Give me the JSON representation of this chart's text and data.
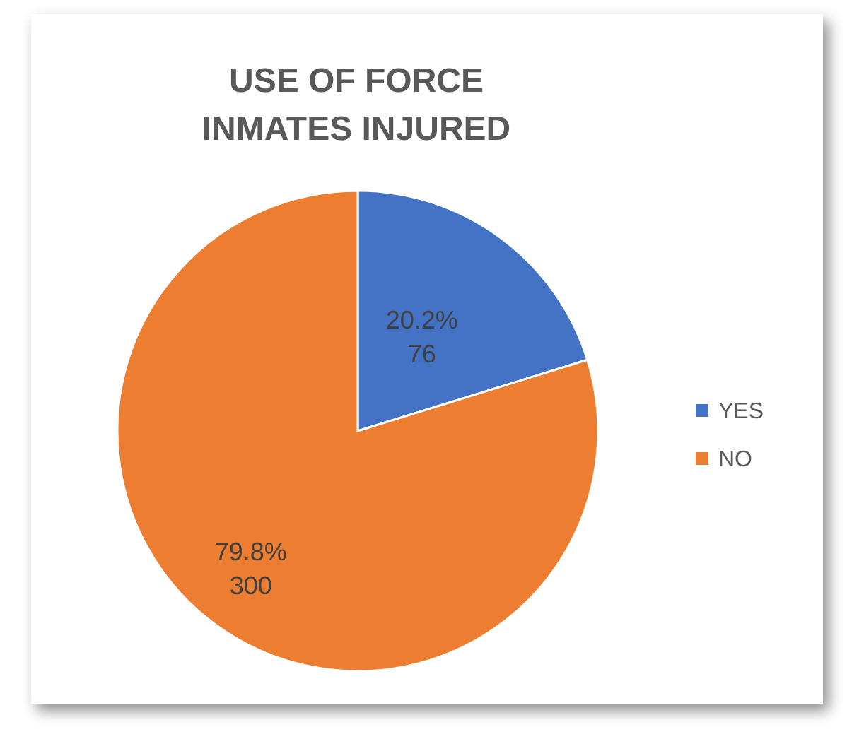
{
  "chart_data": {
    "type": "pie",
    "title": "USE OF FORCE\nINMATES INJURED",
    "categories": [
      "YES",
      "NO"
    ],
    "values": [
      76,
      300
    ],
    "colors": [
      "#4472c4",
      "#ed7d31"
    ],
    "value_labels": [
      "20.2%\n76",
      "79.8%\n300"
    ],
    "legend": "right"
  }
}
